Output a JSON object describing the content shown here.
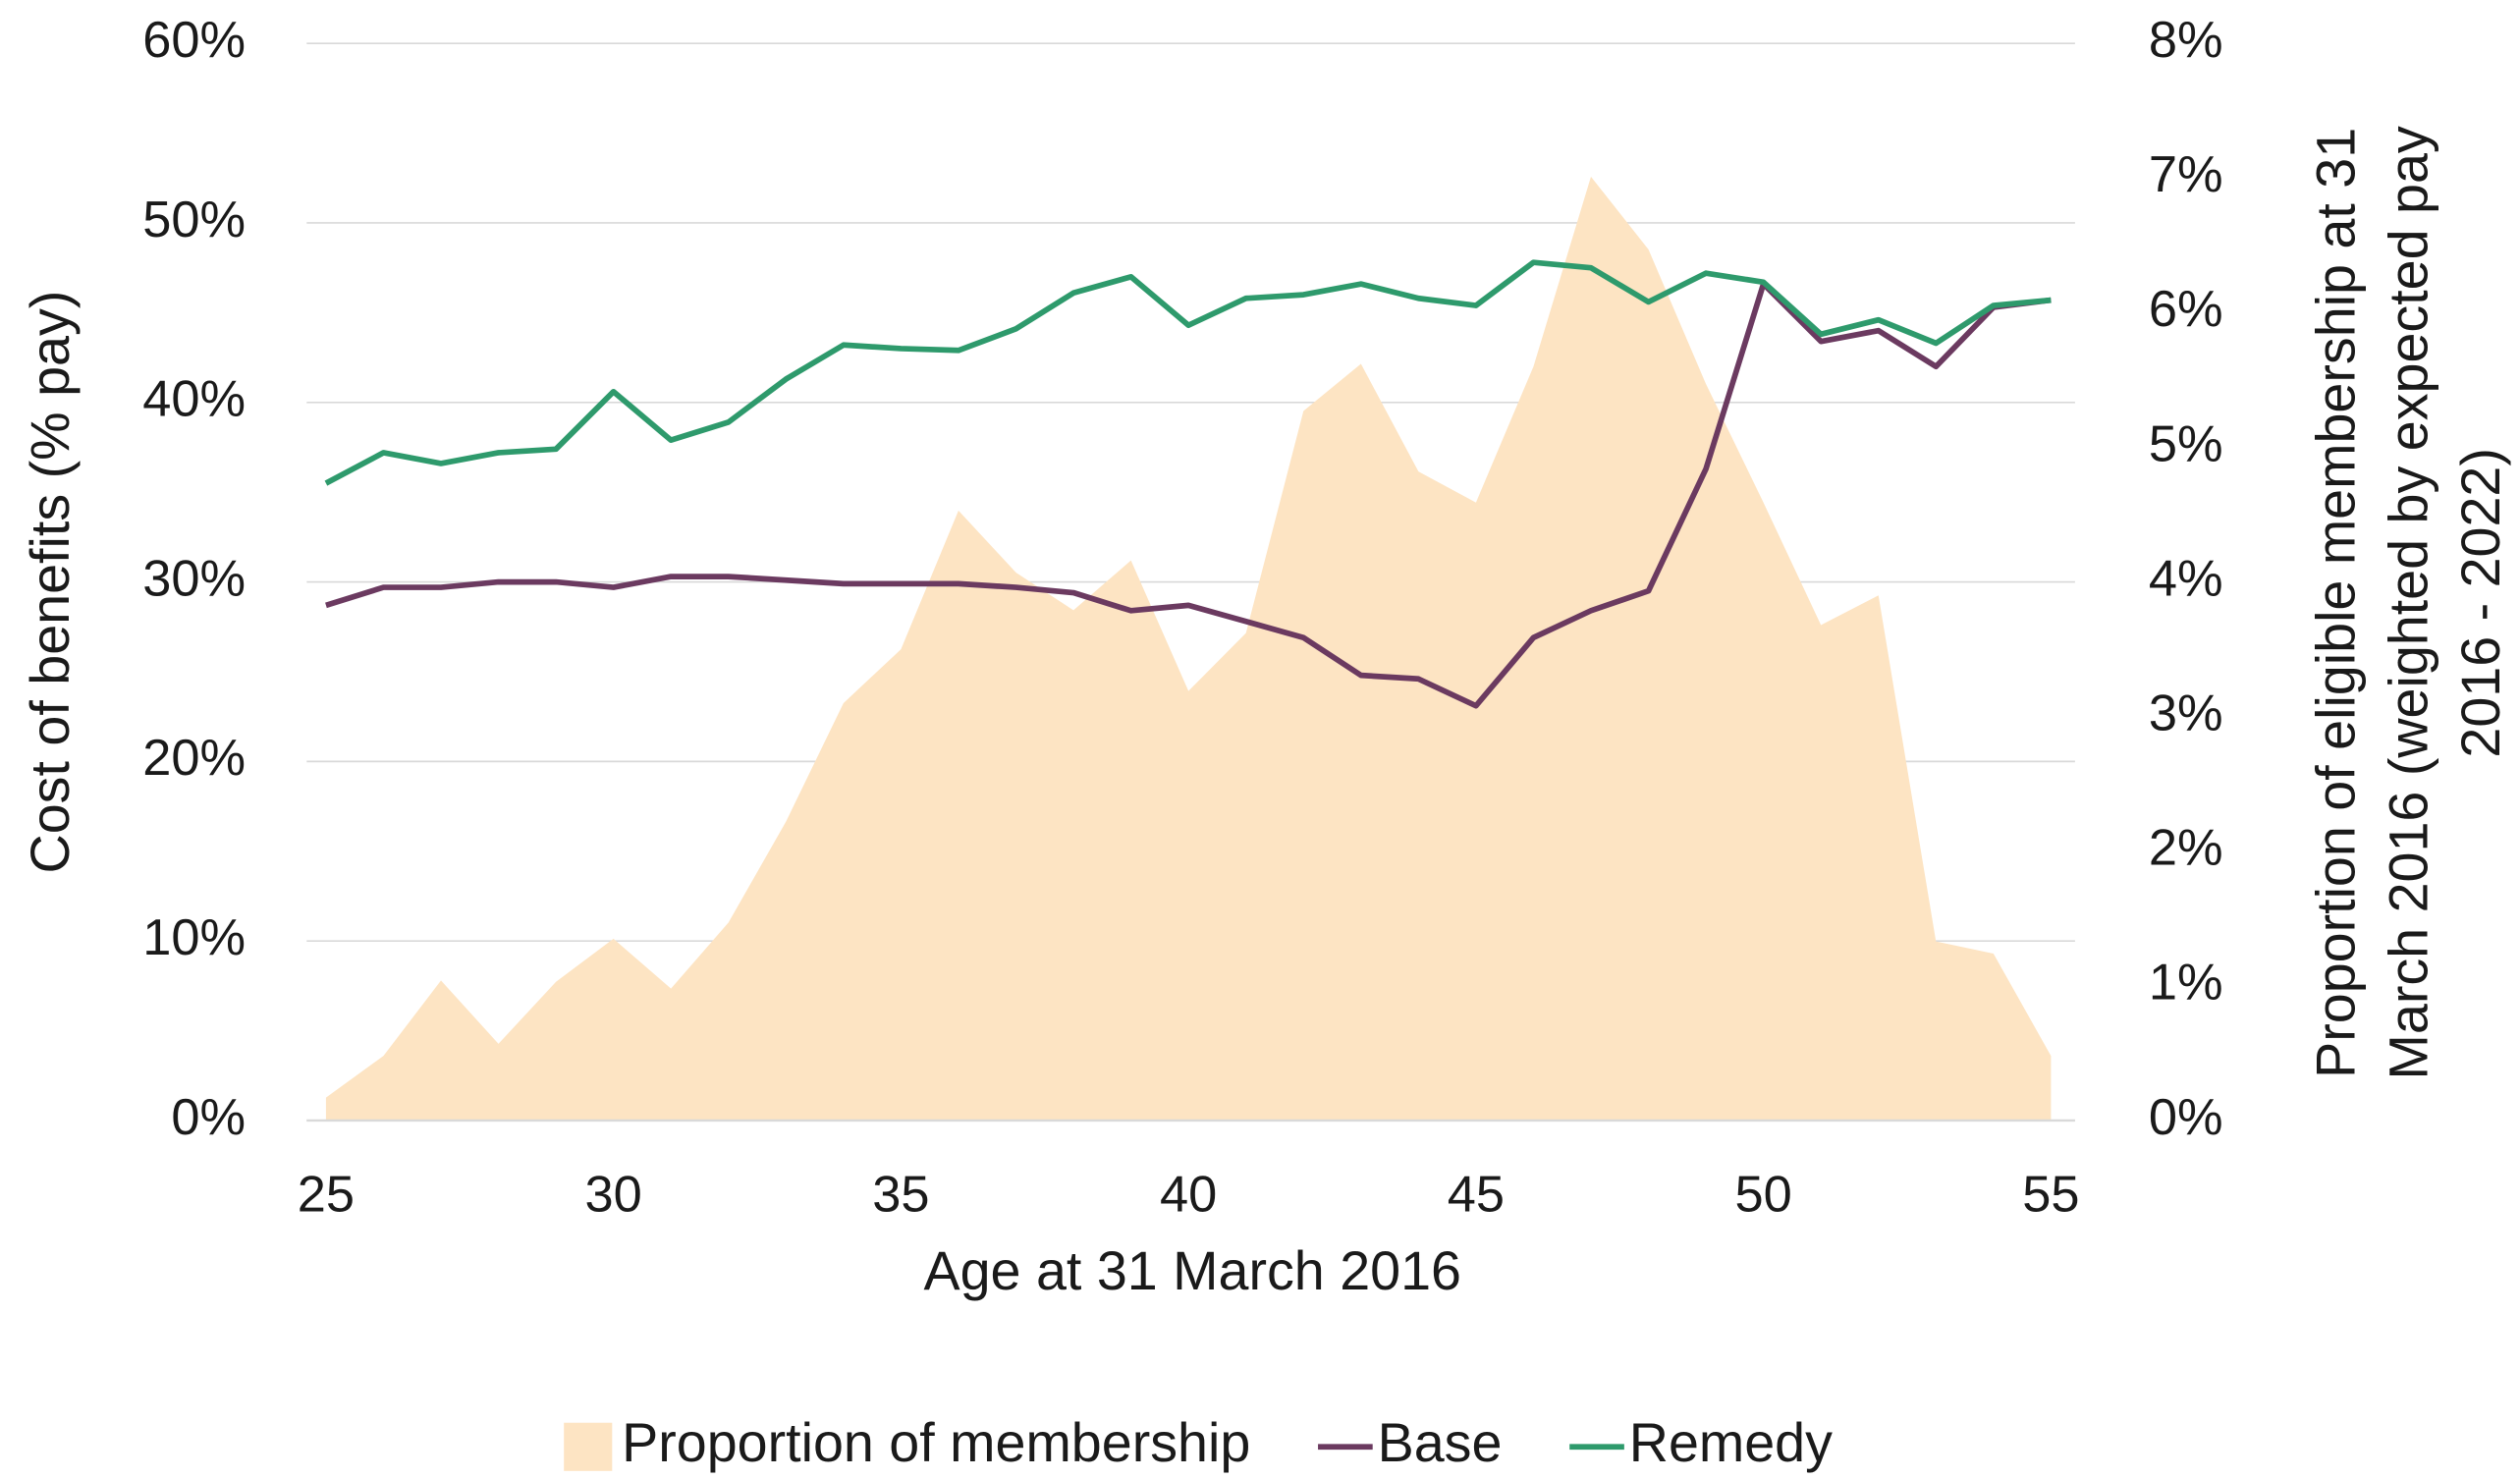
{
  "chart_data": {
    "type": "line",
    "x_label": "Age at 31 March 2016",
    "y_label": "Cost of benefits (% pay)",
    "y2_label": [
      "Proportion of eligible membership at 31",
      "March 2016 (weighted by expected pay",
      "2016 - 2022)"
    ],
    "x": [
      25,
      26,
      27,
      28,
      29,
      30,
      31,
      32,
      33,
      34,
      35,
      36,
      37,
      38,
      39,
      40,
      41,
      42,
      43,
      44,
      45,
      46,
      47,
      48,
      49,
      50,
      51,
      52,
      53,
      54,
      55
    ],
    "xlim": [
      25,
      55
    ],
    "xticks": [
      25,
      30,
      35,
      40,
      45,
      50,
      55
    ],
    "ylim": [
      0,
      60
    ],
    "yticks": [
      {
        "value": 0,
        "label": "0%"
      },
      {
        "value": 10,
        "label": "10%"
      },
      {
        "value": 20,
        "label": "20%"
      },
      {
        "value": 30,
        "label": "30%"
      },
      {
        "value": 40,
        "label": "40%"
      },
      {
        "value": 50,
        "label": "50%"
      },
      {
        "value": 60,
        "label": "60%"
      }
    ],
    "y2lim": [
      0,
      8
    ],
    "y2ticks": [
      {
        "value": 0,
        "label": "0%"
      },
      {
        "value": 1,
        "label": "1%"
      },
      {
        "value": 2,
        "label": "2%"
      },
      {
        "value": 3,
        "label": "3%"
      },
      {
        "value": 4,
        "label": "4%"
      },
      {
        "value": 5,
        "label": "5%"
      },
      {
        "value": 6,
        "label": "6%"
      },
      {
        "value": 7,
        "label": "7%"
      },
      {
        "value": 8,
        "label": "8%"
      }
    ],
    "grid": true,
    "legend": "bottom",
    "series": [
      {
        "name": "Proportion of membership",
        "type": "area",
        "axis": "y2",
        "color": "#fde4c3",
        "values": [
          0.17,
          0.48,
          1.04,
          0.57,
          1.03,
          1.35,
          0.98,
          1.47,
          2.22,
          3.1,
          3.5,
          4.53,
          4.07,
          3.79,
          4.16,
          3.19,
          3.62,
          5.27,
          5.62,
          4.82,
          4.59,
          5.6,
          7.01,
          6.47,
          5.47,
          4.59,
          3.68,
          3.9,
          1.33,
          1.24,
          0.48
        ]
      },
      {
        "name": "Base",
        "type": "line",
        "color": "#6b3a60",
        "values": [
          28.7,
          29.7,
          29.7,
          30.0,
          30.0,
          29.7,
          30.3,
          30.3,
          30.1,
          29.9,
          29.9,
          29.9,
          29.7,
          29.4,
          28.4,
          28.7,
          27.8,
          26.9,
          24.8,
          24.6,
          23.1,
          26.9,
          28.4,
          29.5,
          36.3,
          46.6,
          43.4,
          44.0,
          42.0,
          45.3,
          45.7
        ]
      },
      {
        "name": "Remedy",
        "type": "line",
        "color": "#2e9a6c",
        "values": [
          35.5,
          37.2,
          36.6,
          37.2,
          37.4,
          40.6,
          37.9,
          38.9,
          41.3,
          43.2,
          43.0,
          42.9,
          44.1,
          46.1,
          47.0,
          44.3,
          45.8,
          46.0,
          46.6,
          45.8,
          45.4,
          47.8,
          47.5,
          45.6,
          47.2,
          46.7,
          43.8,
          44.6,
          43.3,
          45.4,
          45.7
        ]
      }
    ]
  }
}
